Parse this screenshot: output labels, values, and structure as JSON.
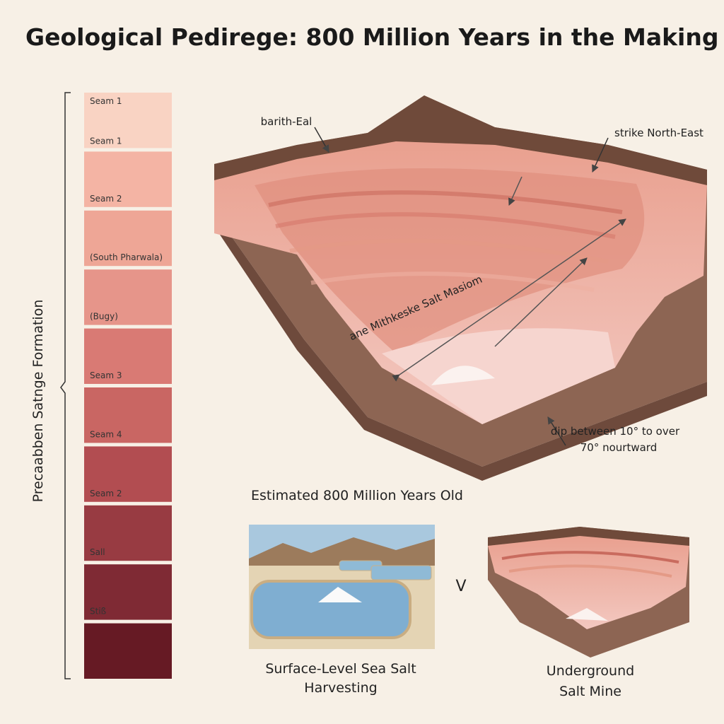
{
  "header": {
    "title": "Geological Pediregе: 800 Million Years in the Making"
  },
  "column": {
    "label": "Precaabben Satnge Formation",
    "seams": [
      {
        "labels": [
          "Seam 1",
          "Seam 1"
        ],
        "color": "#f9d3c3"
      },
      {
        "labels": [
          "Seam 2"
        ],
        "color": "#f4b4a4"
      },
      {
        "labels": [
          "(South Pharwala)"
        ],
        "color": "#eea696"
      },
      {
        "labels": [
          "(Bugy)"
        ],
        "color": "#e6958a"
      },
      {
        "labels": [
          "Seam 3"
        ],
        "color": "#d97a74"
      },
      {
        "labels": [
          "Seam 4"
        ],
        "color": "#c96663"
      },
      {
        "labels": [
          "Seam 2"
        ],
        "color": "#b24d51"
      },
      {
        "labels": [
          "Sall"
        ],
        "color": "#983b42"
      },
      {
        "labels": [
          "Stiß"
        ],
        "color": "#7f2a34"
      },
      {
        "color": "#661a24"
      }
    ]
  },
  "diagram": {
    "annotations": {
      "top_left": "barith-Eal",
      "strike": "strike North-East",
      "salt_mass": "ane Mithkeske Salt Masiom",
      "dip": [
        "dip between 10° to over",
        "70° nourtward"
      ]
    },
    "caption": "Estimated 800 Million Years Old"
  },
  "comparison": {
    "left": [
      "Surface-Level Sea Salt",
      "Harvesting"
    ],
    "separator": "V",
    "right": [
      "Underground",
      "Salt Mine"
    ]
  }
}
